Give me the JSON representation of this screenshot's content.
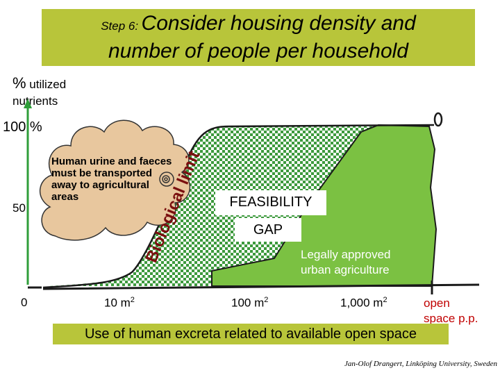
{
  "title": {
    "step": "Step 6:",
    "line1": "Consider housing density and",
    "line2": "number of people per household"
  },
  "y_axis": {
    "label_symbol": "%",
    "label_word1": "utilized",
    "label_word2": "nutrients",
    "tick_100": "100 %",
    "tick_50": "50",
    "tick_0": "0"
  },
  "x_axis": {
    "tick_10": "10 m",
    "tick_100": "100 m",
    "tick_1000": "1,000 m",
    "exponent": "2",
    "open_line1": "open",
    "open_line2": "space p.p."
  },
  "cloud": {
    "text": "Human urine and faeces must be transported away to agricultural areas"
  },
  "labels": {
    "biological_limit": "Biological limit",
    "feasibility": "FEASIBILITY",
    "gap": "GAP",
    "urban_line1": "Legally approved",
    "urban_line2": "urban agriculture"
  },
  "caption": "Use of human excreta related to available open space",
  "credit": "Jan-Olof Drangert, Linköping University, Sweden",
  "colors": {
    "banner": "#b8c53a",
    "area_green": "#7bc142",
    "cloud_fill": "#e8c79e",
    "axis_green": "#2f9e3a",
    "limit_text": "#7a0f0f",
    "open_space_text": "#c00000"
  }
}
